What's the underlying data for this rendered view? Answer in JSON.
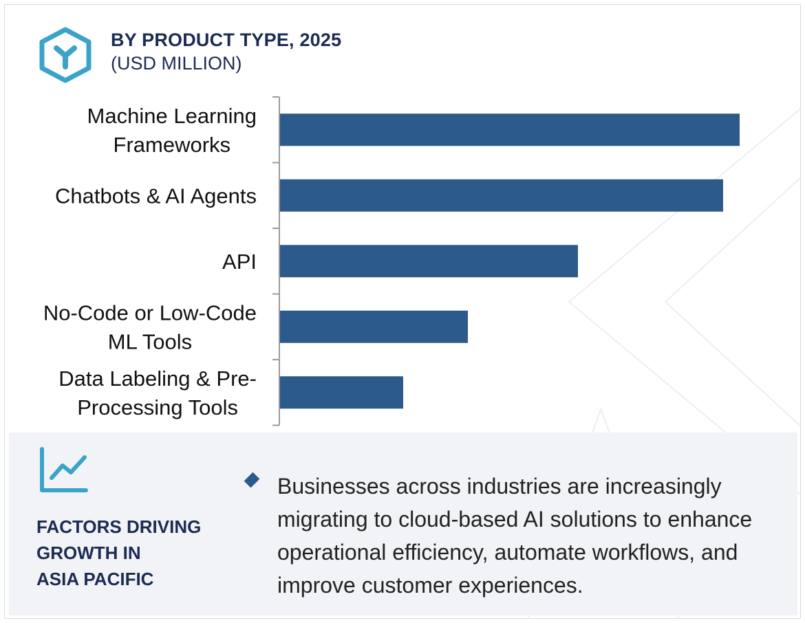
{
  "header": {
    "title": "BY PRODUCT TYPE, 2025",
    "subtitle": "(USD MILLION)",
    "icon": "hexagon-y-icon",
    "accent_color": "#3aa3c8"
  },
  "chart_data": {
    "type": "bar",
    "orientation": "horizontal",
    "title": "BY PRODUCT TYPE, 2025",
    "subtitle": "(USD MILLION)",
    "categories": [
      [
        "Machine Learning",
        "Frameworks"
      ],
      [
        "Chatbots & AI Agents"
      ],
      [
        "API"
      ],
      [
        "No-Code or Low-Code",
        "ML Tools"
      ],
      [
        "Data Labeling & Pre-",
        "Processing Tools"
      ]
    ],
    "values": [
      668,
      644,
      433,
      273,
      179
    ],
    "value_axis_range": [
      0,
      700
    ],
    "value_axis_shown": false,
    "grid": false,
    "bar_color": "#2c5a8a"
  },
  "factors": {
    "icon": "growth-chart-icon",
    "title_lines": [
      "FACTORS DRIVING",
      "GROWTH IN",
      "ASIA PACIFIC"
    ],
    "bullets": [
      "Businesses across industries are increasingly migrating to cloud-based AI solutions to enhance operational efficiency, automate workflows, and improve customer experiences."
    ],
    "bullet_icon": "diamond-bullet-icon"
  }
}
